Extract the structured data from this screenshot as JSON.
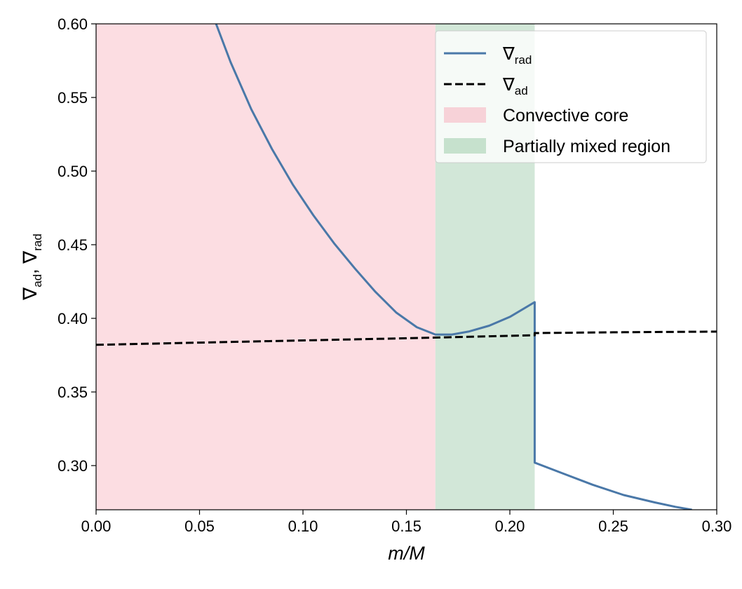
{
  "chart_data": {
    "type": "line",
    "title": "",
    "xlabel": {
      "base": "m/M"
    },
    "ylabel": {
      "sym1": "∇",
      "sub1": "ad",
      "sep": ", ",
      "sym2": "∇",
      "sub2": "rad"
    },
    "xlim": [
      0.0,
      0.3
    ],
    "ylim": [
      0.27,
      0.6
    ],
    "xticks": [
      0.0,
      0.05,
      0.1,
      0.15,
      0.2,
      0.25,
      0.3
    ],
    "yticks": [
      0.3,
      0.35,
      0.4,
      0.45,
      0.5,
      0.55,
      0.6
    ],
    "xtick_labels": [
      "0.00",
      "0.05",
      "0.10",
      "0.15",
      "0.20",
      "0.25",
      "0.30"
    ],
    "ytick_labels": [
      "0.30",
      "0.35",
      "0.40",
      "0.45",
      "0.50",
      "0.55",
      "0.60"
    ],
    "grid": false,
    "legend_position": "top-right",
    "regions": [
      {
        "name": "Convective core",
        "x_start": 0.0,
        "x_end": 0.164,
        "color": "#fcdde2"
      },
      {
        "name": "Partially mixed region",
        "x_start": 0.164,
        "x_end": 0.212,
        "color": "#d2e7d8"
      }
    ],
    "series": [
      {
        "name": {
          "sym": "∇",
          "sub": "rad"
        },
        "style": "solid",
        "color": "#4a78a8",
        "points": [
          [
            0.058,
            0.6
          ],
          [
            0.065,
            0.574
          ],
          [
            0.075,
            0.542
          ],
          [
            0.085,
            0.515
          ],
          [
            0.095,
            0.491
          ],
          [
            0.105,
            0.47
          ],
          [
            0.115,
            0.451
          ],
          [
            0.125,
            0.434
          ],
          [
            0.135,
            0.418
          ],
          [
            0.145,
            0.404
          ],
          [
            0.155,
            0.394
          ],
          [
            0.164,
            0.389
          ],
          [
            0.172,
            0.389
          ],
          [
            0.18,
            0.391
          ],
          [
            0.19,
            0.395
          ],
          [
            0.2,
            0.401
          ],
          [
            0.212,
            0.411
          ],
          [
            0.212,
            0.302
          ],
          [
            0.225,
            0.295
          ],
          [
            0.24,
            0.287
          ],
          [
            0.255,
            0.28
          ],
          [
            0.27,
            0.275
          ],
          [
            0.28,
            0.272
          ],
          [
            0.288,
            0.27
          ]
        ]
      },
      {
        "name": {
          "sym": "∇",
          "sub": "ad"
        },
        "style": "dashed",
        "color": "#000000",
        "points": [
          [
            0.0,
            0.382
          ],
          [
            0.05,
            0.3835
          ],
          [
            0.1,
            0.385
          ],
          [
            0.15,
            0.3865
          ],
          [
            0.212,
            0.3885
          ],
          [
            0.212,
            0.39
          ],
          [
            0.25,
            0.3905
          ],
          [
            0.3,
            0.391
          ]
        ]
      }
    ],
    "legend": [
      {
        "kind": "line",
        "style": "solid",
        "color": "#4a78a8",
        "sym": "∇",
        "sub": "rad"
      },
      {
        "kind": "line",
        "style": "dashed",
        "color": "#000000",
        "sym": "∇",
        "sub": "ad"
      },
      {
        "kind": "patch",
        "color": "#f7d2d8",
        "text": "Convective core"
      },
      {
        "kind": "patch",
        "color": "#c6e1cd",
        "text": "Partially mixed region"
      }
    ]
  }
}
